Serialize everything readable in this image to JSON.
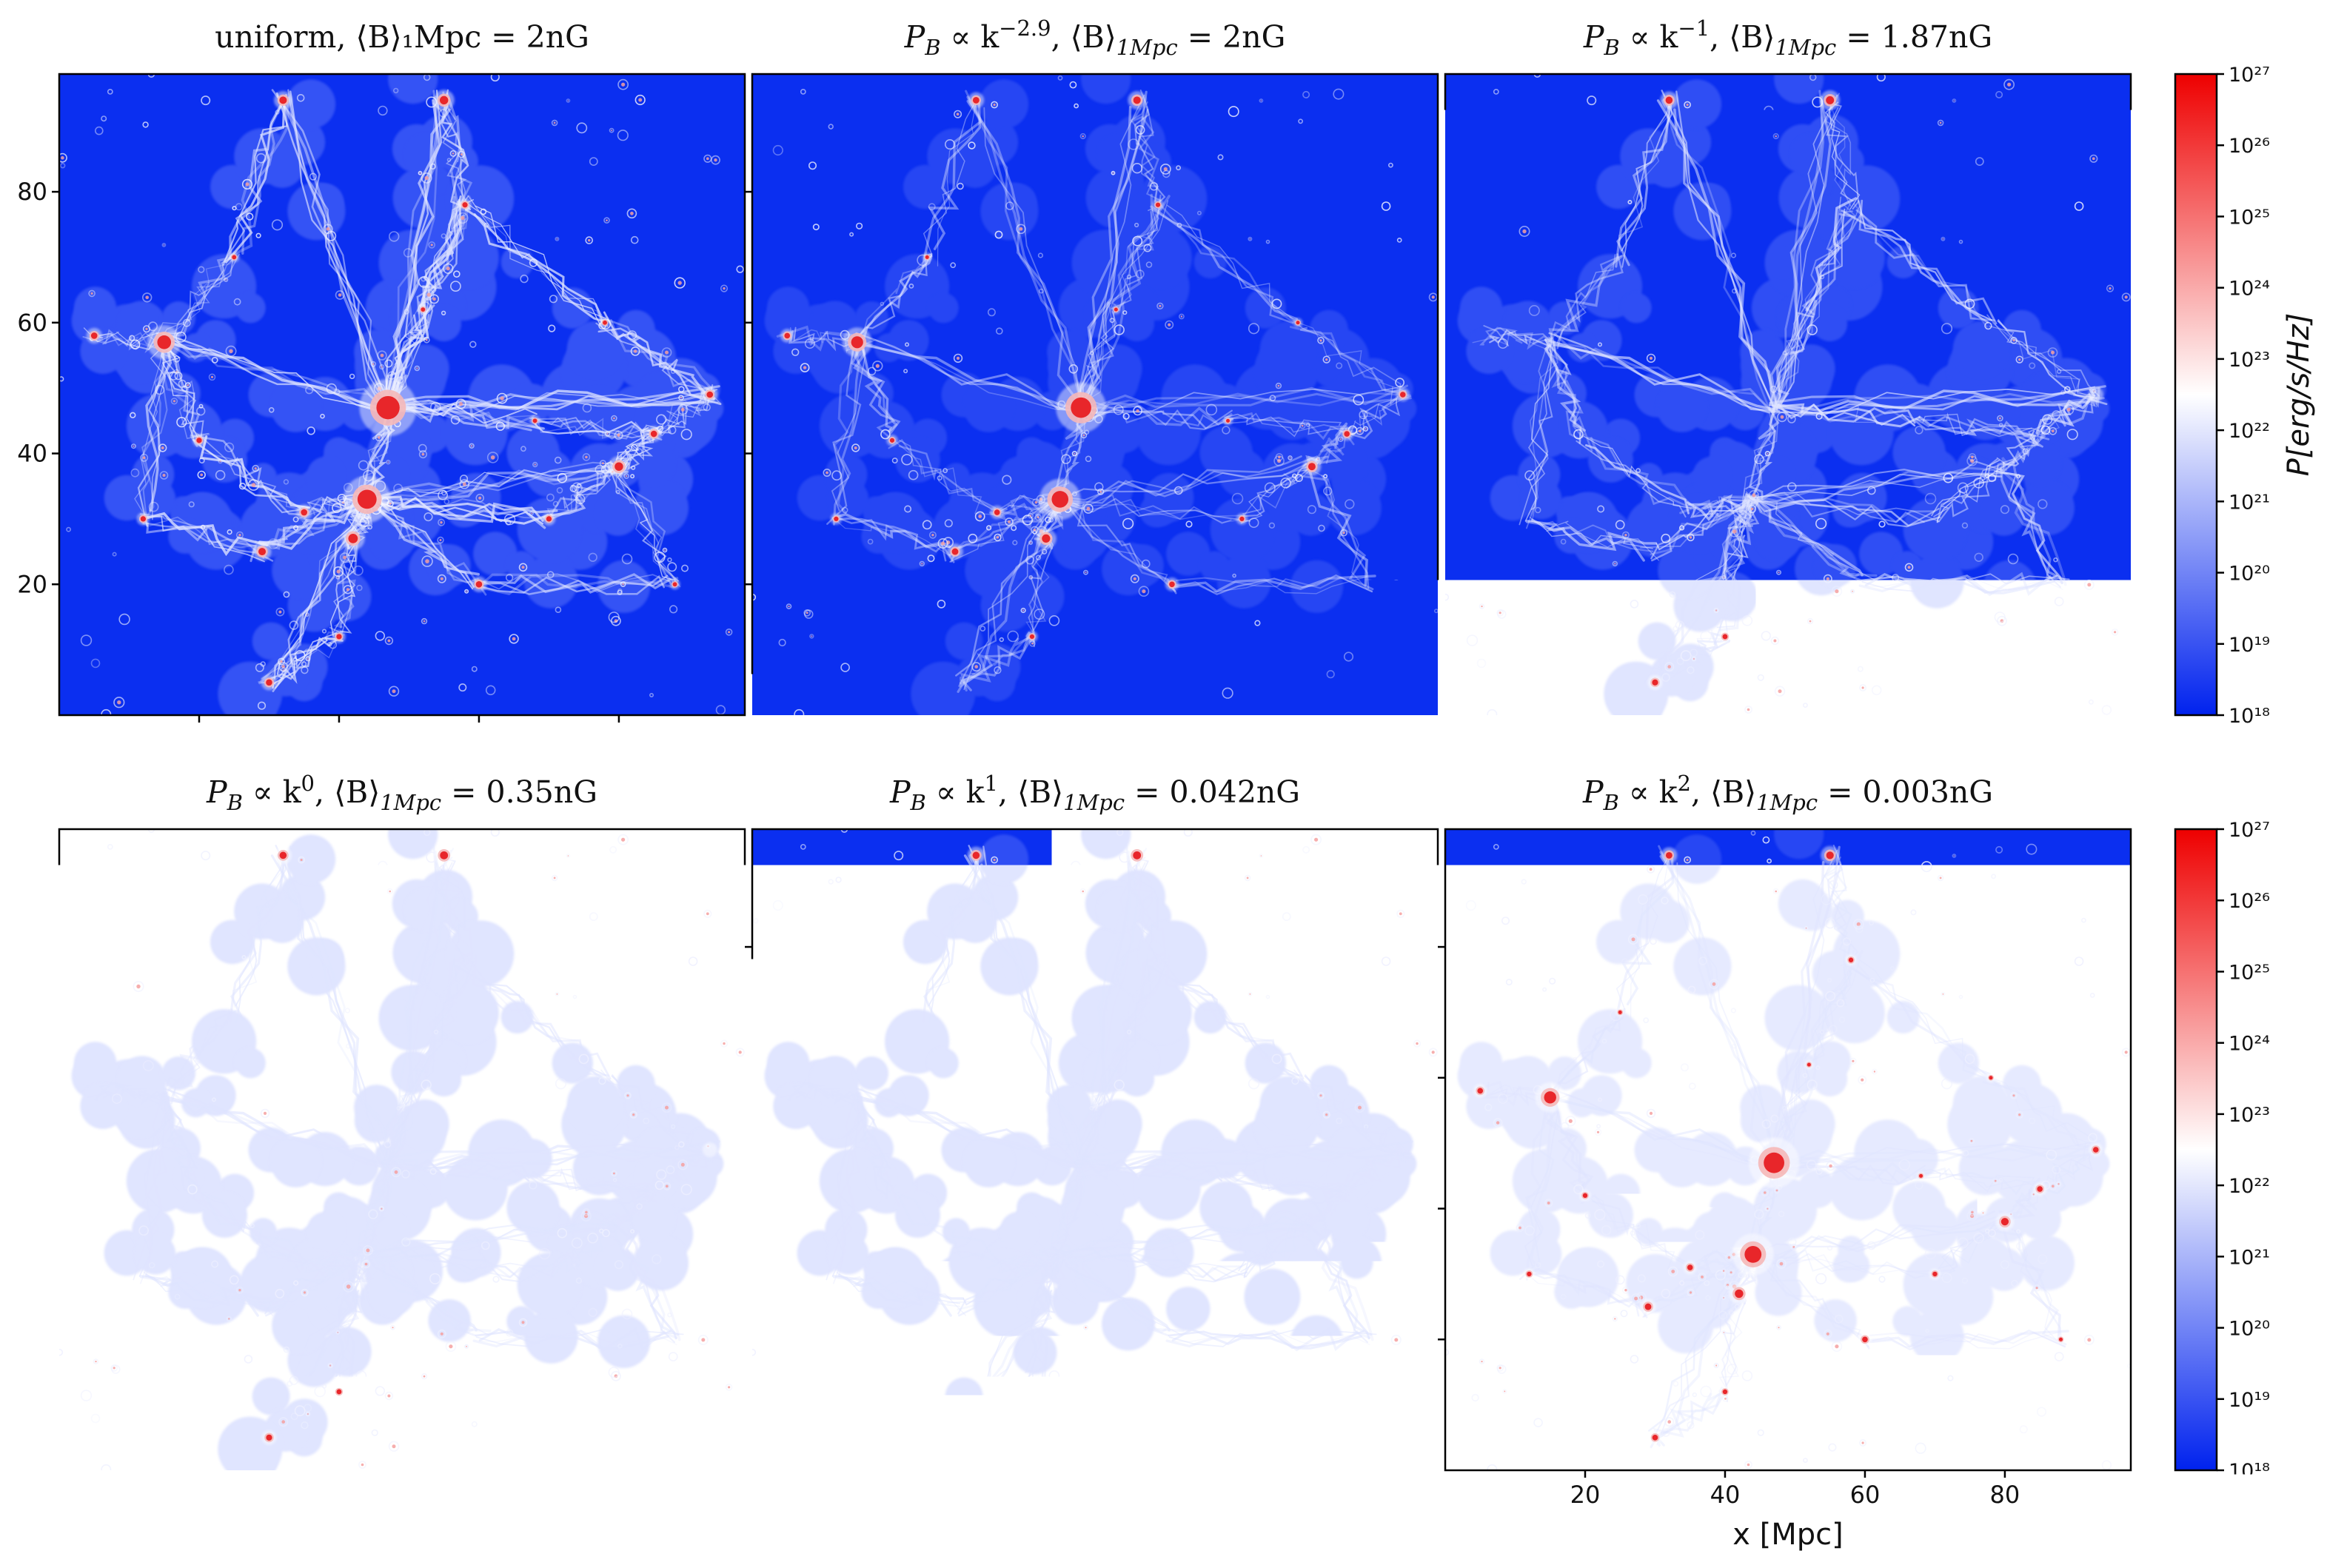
{
  "chart_data": {
    "type": "heatmap",
    "panels": [
      {
        "id": "p1",
        "title": "uniform, ⟨B⟩₁Mpc = 2nG",
        "density": 1.0
      },
      {
        "id": "p2",
        "title": "P_B ∝ k^−2.9, ⟨B⟩_1Mpc = 2nG",
        "density": 0.45
      },
      {
        "id": "p3",
        "title": "P_B ∝ k^−1, ⟨B⟩_1Mpc = 1.87nG",
        "density": 0.8
      },
      {
        "id": "p4",
        "title": "P_B ∝ k^0, ⟨B⟩_1Mpc = 0.35nG",
        "density": 0.78
      },
      {
        "id": "p5",
        "title": "P_B ∝ k^1, ⟨B⟩_1Mpc = 0.042nG",
        "density": 0.78
      },
      {
        "id": "p6",
        "title": "P_B ∝ k^2, ⟨B⟩_1Mpc = 0.003nG",
        "density": 0.5
      }
    ],
    "xlabel": "x [Mpc]",
    "xlim": [
      0,
      98
    ],
    "ylim": [
      0,
      98
    ],
    "xticks": [
      20,
      40,
      60,
      80
    ],
    "yticks": [
      20,
      40,
      60,
      80
    ],
    "colorbar": {
      "label": "P[erg/s/Hz]",
      "scale": "log",
      "range": [
        1e+18,
        1e+27
      ],
      "tick_labels": [
        "10¹⁸",
        "10¹⁹",
        "10²⁰",
        "10²¹",
        "10²²",
        "10²³",
        "10²⁴",
        "10²⁵",
        "10²⁶",
        "10²⁷"
      ],
      "colors": {
        "low": "#0022ee",
        "mid": "#ffffff",
        "high": "#ee0000"
      }
    },
    "background_color": "#0b2ff0"
  }
}
